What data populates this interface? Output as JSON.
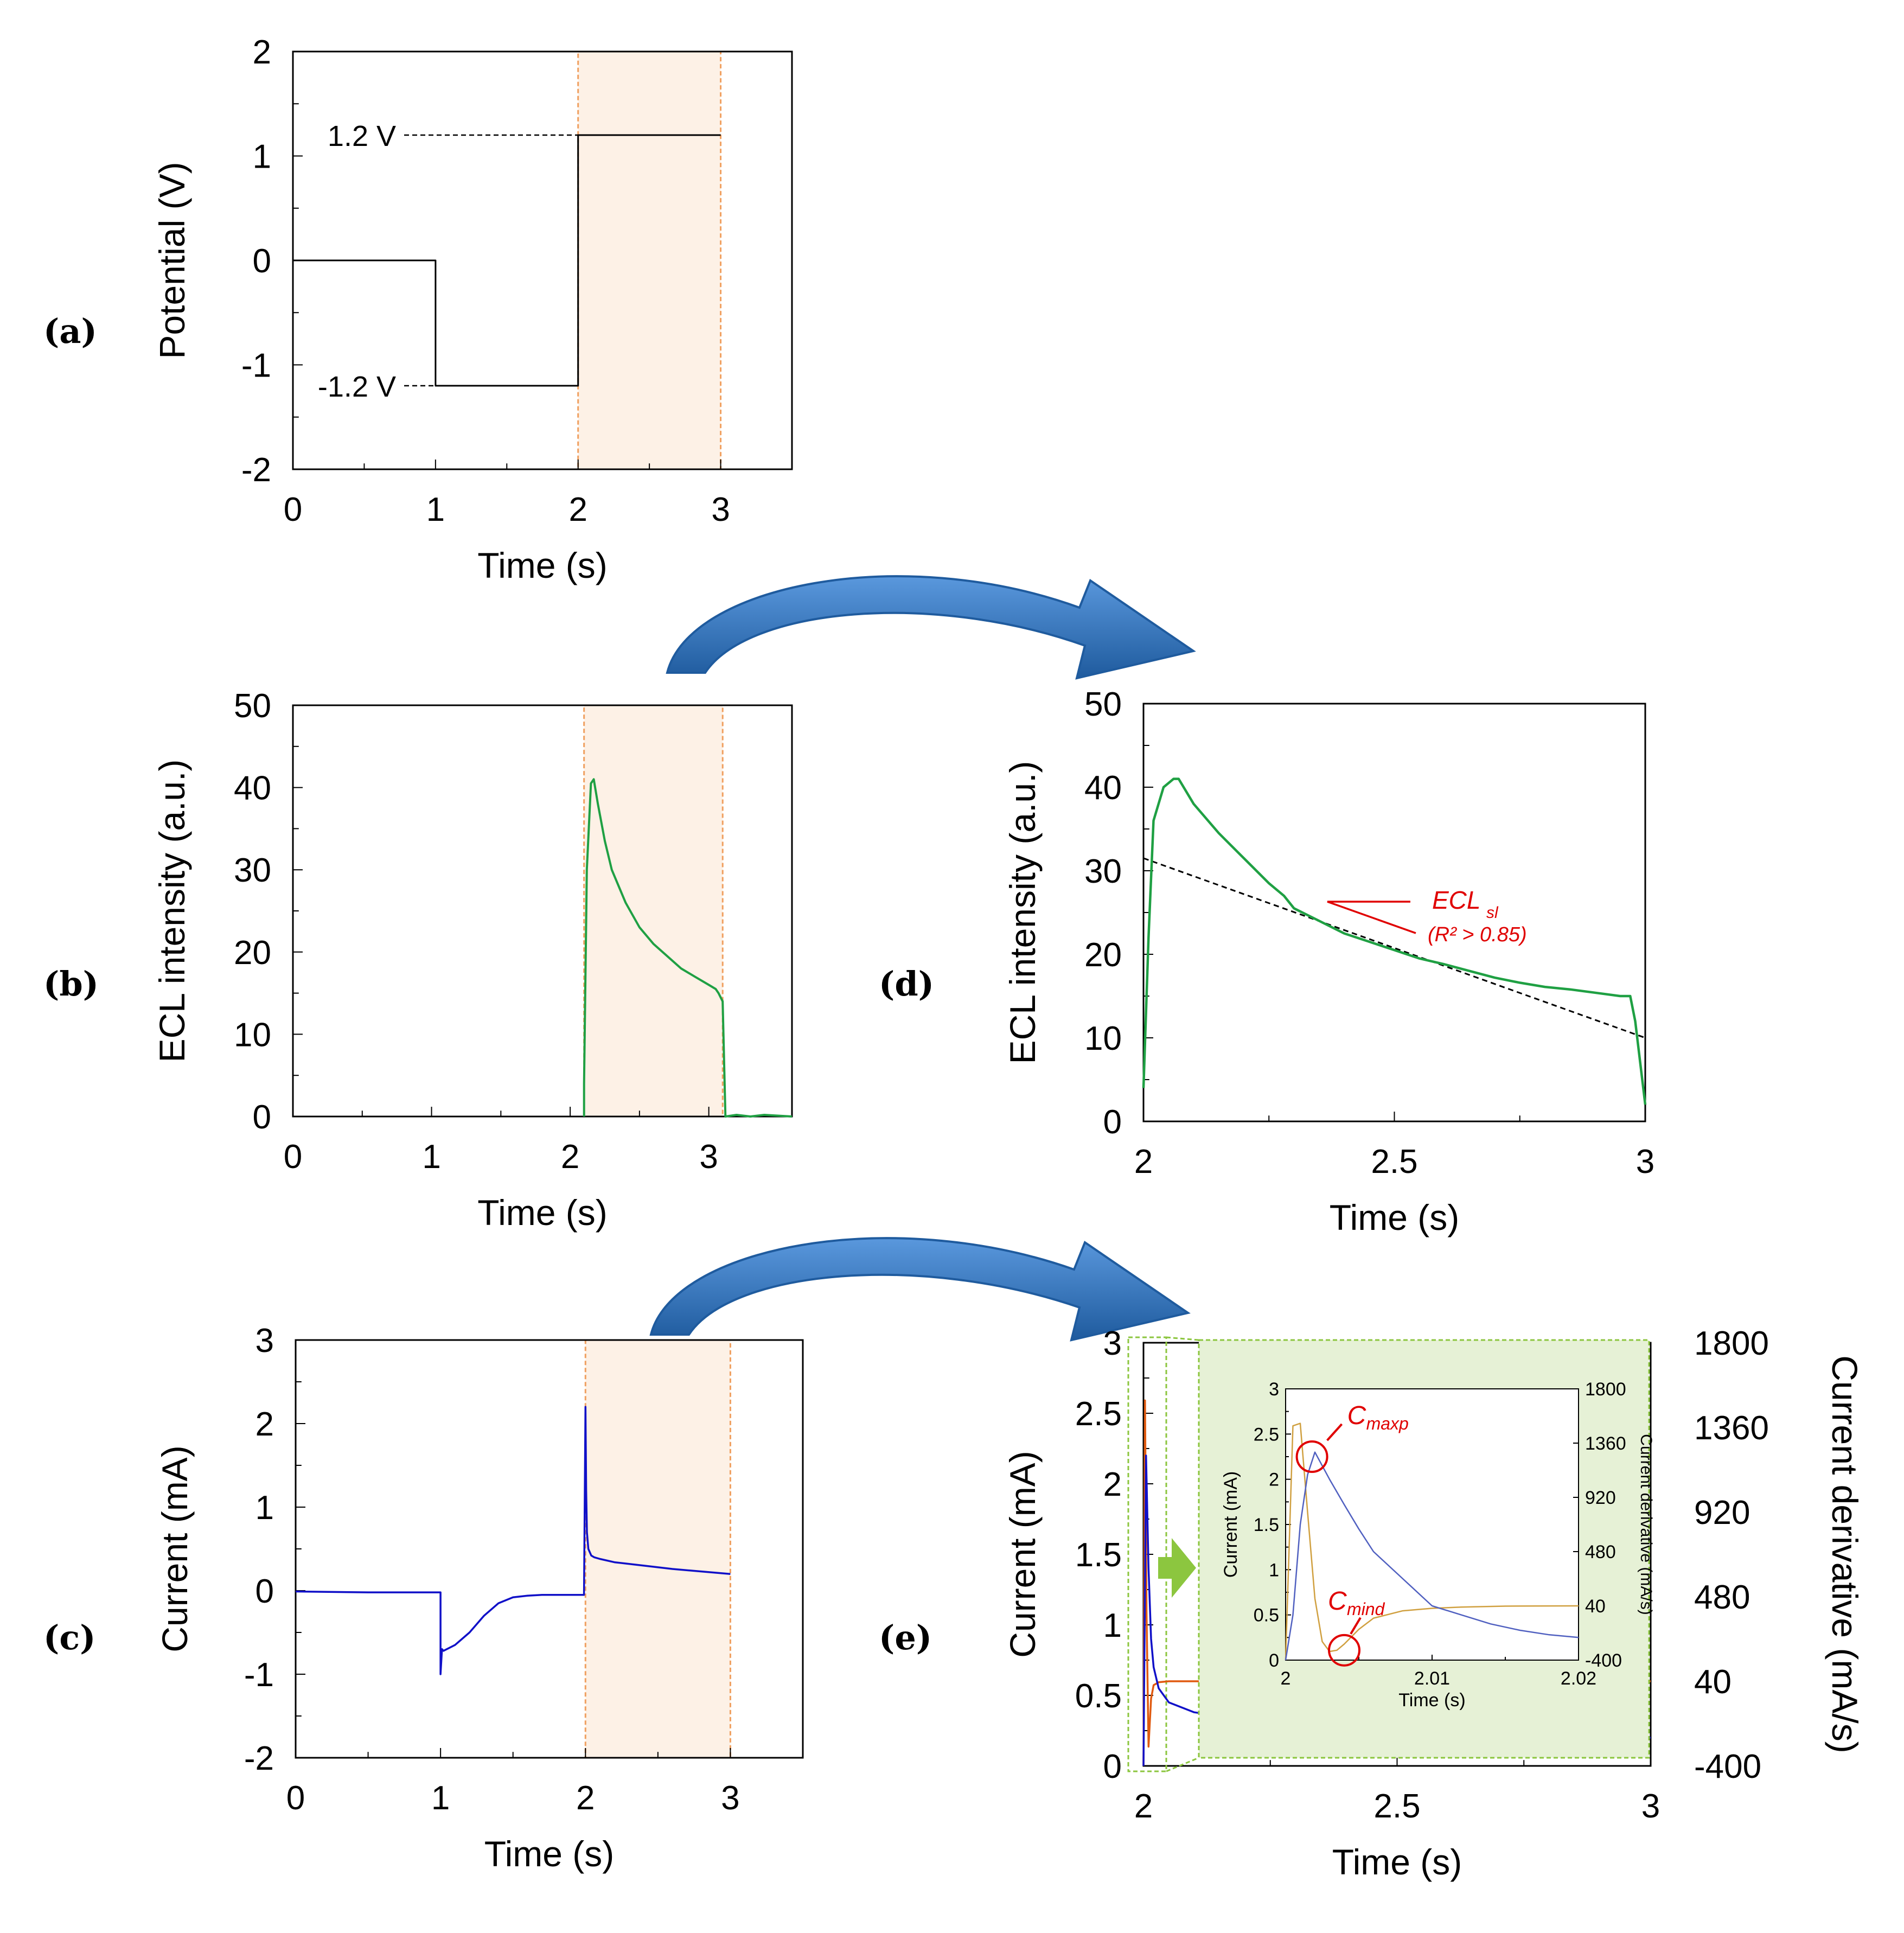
{
  "colors": {
    "highlight_fill": "#fdf1e6",
    "highlight_stroke": "#f0a060",
    "ecl_line": "#1fa043",
    "current_line": "#1010c8",
    "derivative_line": "#e05a10",
    "inset_line_current": "#5060c0",
    "inset_line_derivative": "#d0a040",
    "inset_bg": "#e6f1d6",
    "inset_border": "#8cc63f",
    "arrow_blue": "#3a78bd",
    "annotation_red": "#e00000"
  },
  "panel_labels": {
    "a": "(a)",
    "b": "(b)",
    "c": "(c)",
    "d": "(d)",
    "e": "(e)"
  },
  "chart_data": [
    {
      "id": "a",
      "type": "line",
      "xlabel": "Time (s)",
      "ylabel": "Potential (V)",
      "xlim": [
        0,
        3.5
      ],
      "ylim": [
        -2,
        2
      ],
      "xticks": [
        "0",
        "1",
        "2",
        "3"
      ],
      "yticks": [
        "-2",
        "-1",
        "0",
        "1",
        "2"
      ],
      "highlight": [
        2,
        3
      ],
      "series": [
        {
          "x": [
            0,
            1,
            1,
            2,
            2,
            3
          ],
          "y": [
            0,
            0,
            -1.2,
            -1.2,
            1.2,
            1.2
          ]
        }
      ],
      "annotations": [
        {
          "text": "1.2 V",
          "y": 1.2
        },
        {
          "text": "-1.2 V",
          "y": -1.2
        }
      ]
    },
    {
      "id": "b",
      "type": "line",
      "xlabel": "Time (s)",
      "ylabel": "ECL intensity (a.u.)",
      "xlim": [
        0,
        3.6
      ],
      "ylim": [
        0,
        50
      ],
      "xticks": [
        "0",
        "1",
        "2",
        "3"
      ],
      "yticks": [
        "0",
        "10",
        "20",
        "30",
        "40",
        "50"
      ],
      "highlight": [
        2.1,
        3.1
      ],
      "series": [
        {
          "x": [
            2.1,
            2.1,
            2.12,
            2.15,
            2.17,
            2.2,
            2.25,
            2.3,
            2.4,
            2.5,
            2.6,
            2.7,
            2.8,
            2.9,
            3.0,
            3.05,
            3.07,
            3.1,
            3.12,
            3.2,
            3.3,
            3.4,
            3.5,
            3.6
          ],
          "y": [
            0,
            4,
            30,
            40.5,
            41,
            38,
            33.5,
            30,
            26,
            23,
            21,
            19.5,
            18,
            17,
            16,
            15.5,
            15,
            14,
            0,
            0.2,
            0,
            0.2,
            0.1,
            0
          ]
        }
      ]
    },
    {
      "id": "c",
      "type": "line",
      "xlabel": "Time (s)",
      "ylabel": "Current (mA)",
      "xlim": [
        0,
        3.5
      ],
      "ylim": [
        -2,
        3
      ],
      "xticks": [
        "0",
        "1",
        "2",
        "3"
      ],
      "yticks": [
        "-2",
        "-1",
        "0",
        "1",
        "2",
        "3"
      ],
      "highlight": [
        2,
        3
      ],
      "series": [
        {
          "x": [
            0,
            0.5,
            1.0,
            1.0,
            1.01,
            1.02,
            1.1,
            1.2,
            1.3,
            1.4,
            1.5,
            1.6,
            1.7,
            1.8,
            1.9,
            1.99,
            2.0,
            2.005,
            2.01,
            2.02,
            2.04,
            2.06,
            2.1,
            2.2,
            2.4,
            2.6,
            2.8,
            3.0
          ],
          "y": [
            -0.01,
            -0.02,
            -0.02,
            -1.0,
            -0.7,
            -0.72,
            -0.65,
            -0.5,
            -0.3,
            -0.15,
            -0.08,
            -0.06,
            -0.05,
            -0.05,
            -0.05,
            -0.05,
            2.2,
            1.2,
            0.7,
            0.5,
            0.42,
            0.4,
            0.38,
            0.34,
            0.3,
            0.26,
            0.23,
            0.2
          ]
        }
      ]
    },
    {
      "id": "d",
      "type": "line",
      "xlabel": "Time (s)",
      "ylabel": "ECL intensity (a.u.)",
      "xlim": [
        2,
        3
      ],
      "ylim": [
        0,
        50
      ],
      "xticks": [
        "2",
        "2.5",
        "3"
      ],
      "yticks": [
        "0",
        "10",
        "20",
        "30",
        "40",
        "50"
      ],
      "series": [
        {
          "name": "ECL",
          "x": [
            2.0,
            2.01,
            2.02,
            2.04,
            2.06,
            2.07,
            2.1,
            2.15,
            2.2,
            2.25,
            2.28,
            2.3,
            2.35,
            2.4,
            2.45,
            2.5,
            2.55,
            2.6,
            2.65,
            2.7,
            2.75,
            2.8,
            2.85,
            2.9,
            2.95,
            2.97,
            2.98,
            3.0
          ],
          "y": [
            4,
            22,
            36,
            40,
            41,
            41,
            38,
            34.5,
            31.5,
            28.5,
            27,
            25.5,
            24,
            22.5,
            21.5,
            20.5,
            19.5,
            18.8,
            18,
            17.2,
            16.6,
            16.1,
            15.8,
            15.4,
            15,
            15,
            12,
            2
          ]
        },
        {
          "name": "fit",
          "x": [
            2.0,
            3.0
          ],
          "y": [
            31.5,
            10
          ]
        }
      ],
      "annotations": [
        {
          "text": "ECL",
          "sub": "sl",
          "note": "(R² > 0.85)"
        }
      ]
    },
    {
      "id": "e",
      "type": "line",
      "xlabel": "Time (s)",
      "ylabel": "Current (mA)",
      "y2label": "Current derivative (mA/s)",
      "xlim": [
        2,
        3
      ],
      "ylim": [
        0,
        3
      ],
      "y2lim": [
        -400,
        1800
      ],
      "xticks": [
        "2",
        "2.5",
        "3"
      ],
      "yticks": [
        "0",
        "0.5",
        "1",
        "1.5",
        "2",
        "2.5",
        "3"
      ],
      "y2ticks": [
        "-400",
        "40",
        "480",
        "920",
        "1360",
        "1800"
      ],
      "series": [
        {
          "name": "current",
          "x": [
            2.0,
            2.005,
            2.01,
            2.015,
            2.02,
            2.03,
            2.05,
            2.1,
            2.2,
            2.3,
            2.4,
            2.5,
            2.6,
            2.7,
            2.8,
            2.9,
            3.0
          ],
          "y": [
            0,
            2.2,
            1.4,
            0.9,
            0.7,
            0.55,
            0.45,
            0.38,
            0.33,
            0.3,
            0.27,
            0.25,
            0.24,
            0.23,
            0.22,
            0.21,
            0.2
          ]
        },
        {
          "name": "derivative",
          "x": [
            2.0,
            2.003,
            2.006,
            2.01,
            2.015,
            2.02,
            2.03,
            2.05,
            2.1,
            2.5,
            3.0
          ],
          "y": [
            -400,
            1500,
            400,
            -300,
            -50,
            20,
            35,
            40,
            40,
            40,
            40
          ]
        }
      ],
      "inset": {
        "xlabel": "Time (s)",
        "ylabel": "Current (mA)",
        "y2label": "Current derivative (mA/s)",
        "xlim": [
          2,
          2.02
        ],
        "ylim": [
          0,
          3
        ],
        "y2lim": [
          -400,
          1800
        ],
        "xticks": [
          "2",
          "2.01",
          "2.02"
        ],
        "yticks": [
          "0",
          "0.5",
          "1",
          "1.5",
          "2",
          "2.5",
          "3"
        ],
        "y2ticks": [
          "-400",
          "40",
          "480",
          "920",
          "1360",
          "1800"
        ],
        "series": [
          {
            "name": "current",
            "x": [
              2.0,
              2.0005,
              2.001,
              2.0015,
              2.002,
              2.003,
              2.004,
              2.005,
              2.006,
              2.008,
              2.01,
              2.012,
              2.014,
              2.016,
              2.018,
              2.02
            ],
            "y": [
              0,
              0.5,
              1.5,
              2.05,
              2.3,
              2.0,
              1.72,
              1.45,
              1.2,
              0.9,
              0.6,
              0.5,
              0.4,
              0.33,
              0.28,
              0.25
            ]
          },
          {
            "name": "derivative",
            "x": [
              2.0,
              2.0005,
              2.001,
              2.0015,
              2.002,
              2.0025,
              2.003,
              2.0035,
              2.004,
              2.005,
              2.006,
              2.008,
              2.01,
              2.012,
              2.015,
              2.02
            ],
            "y": [
              -400,
              1500,
              1520,
              800,
              100,
              -250,
              -330,
              -320,
              -270,
              -150,
              -60,
              0,
              20,
              30,
              38,
              40
            ]
          }
        ],
        "annotations": [
          {
            "text": "C",
            "sub": "maxp",
            "x": 2.0018,
            "y": 2.25
          },
          {
            "text": "C",
            "sub": "mind",
            "x": 2.004,
            "y": -320,
            "axis": "y2"
          }
        ]
      }
    }
  ]
}
